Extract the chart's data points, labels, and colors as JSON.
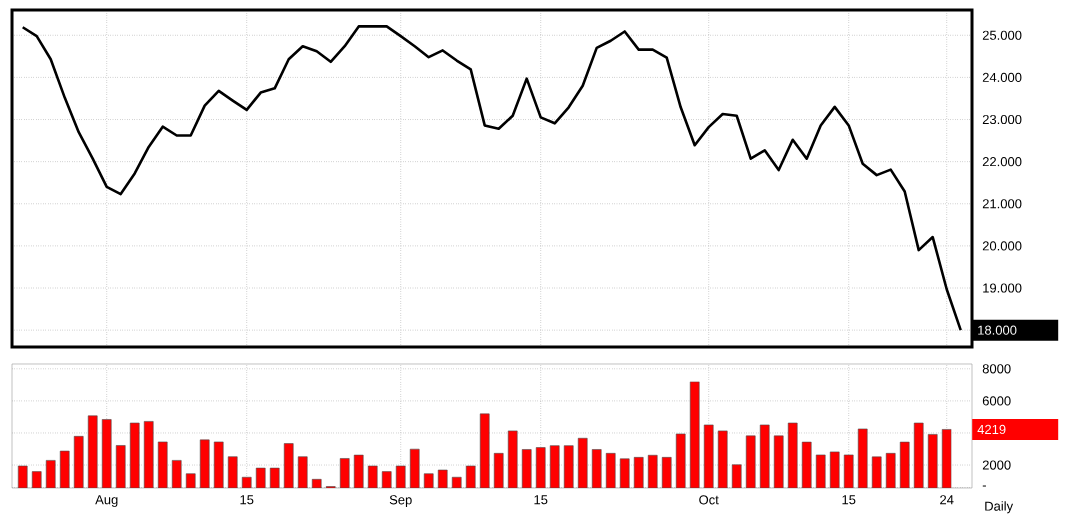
{
  "chart_data": [
    {
      "type": "line",
      "categories": [
        null,
        null,
        null,
        null,
        null,
        null,
        null,
        null,
        null,
        null,
        null,
        null,
        null,
        null,
        null,
        null,
        null,
        null,
        null,
        null,
        null,
        null,
        null,
        null,
        null,
        null,
        null,
        null,
        null,
        null,
        null,
        null,
        null,
        null,
        null,
        null,
        null,
        null,
        null,
        null,
        null,
        null,
        null,
        null,
        null,
        null,
        null,
        null,
        null,
        null,
        null,
        null,
        null,
        null,
        null,
        null,
        null,
        null,
        null,
        null,
        null,
        null,
        null,
        null,
        null,
        null,
        null,
        null
      ],
      "values": [
        25.19,
        24.98,
        24.43,
        23.52,
        22.7,
        22.07,
        21.4,
        21.23,
        21.72,
        22.35,
        22.83,
        22.62,
        22.62,
        23.33,
        23.68,
        23.45,
        23.23,
        23.64,
        23.74,
        24.43,
        24.74,
        24.62,
        24.37,
        24.74,
        25.21,
        25.21,
        25.21,
        24.98,
        24.74,
        24.48,
        24.64,
        24.4,
        24.19,
        22.86,
        22.78,
        23.09,
        23.97,
        23.05,
        22.91,
        23.29,
        23.8,
        24.7,
        24.87,
        25.09,
        24.66,
        24.66,
        24.47,
        23.29,
        22.39,
        22.82,
        23.13,
        23.09,
        22.07,
        22.27,
        21.8,
        22.52,
        22.07,
        22.86,
        23.3,
        22.86,
        21.95,
        21.68,
        21.81,
        21.29,
        19.9,
        20.21,
        18.97,
        18.0
      ],
      "color": "#000000",
      "ylim": [
        17.6,
        25.6
      ],
      "yticks": [
        {
          "value": 18,
          "label": null
        },
        {
          "value": 19,
          "label": "19.000"
        },
        {
          "value": 20,
          "label": "20.000"
        },
        {
          "value": 21,
          "label": "21.000"
        },
        {
          "value": 22,
          "label": "22.000"
        },
        {
          "value": 23,
          "label": "23.000"
        },
        {
          "value": 24,
          "label": "24.000"
        },
        {
          "value": 25,
          "label": "25.000"
        }
      ],
      "grid": true,
      "tick_labels": "y",
      "annotations": [
        "18.000"
      ]
    },
    {
      "type": "bar",
      "categories": [
        null,
        null,
        null,
        null,
        null,
        null,
        "Aug",
        null,
        null,
        null,
        null,
        null,
        null,
        null,
        null,
        null,
        "15",
        null,
        null,
        null,
        null,
        null,
        null,
        null,
        null,
        null,
        null,
        "Sep",
        null,
        null,
        null,
        null,
        null,
        null,
        null,
        null,
        null,
        "15",
        null,
        null,
        null,
        null,
        null,
        null,
        null,
        null,
        null,
        null,
        null,
        "Oct",
        null,
        null,
        null,
        null,
        null,
        null,
        null,
        null,
        null,
        "15",
        null,
        null,
        null,
        null,
        null,
        null,
        "24",
        null
      ],
      "values": [
        1940,
        1590,
        2290,
        2870,
        3790,
        5070,
        4840,
        3220,
        4620,
        4720,
        3440,
        2290,
        1460,
        3570,
        3440,
        2520,
        1240,
        1810,
        1810,
        3340,
        2520,
        1110,
        660,
        2410,
        2620,
        1940,
        1590,
        1940,
        2990,
        1460,
        1690,
        1240,
        1940,
        5190,
        2730,
        4130,
        2970,
        3090,
        3210,
        3210,
        3670,
        2970,
        2730,
        2390,
        2480,
        2610,
        2480,
        3940,
        7190,
        4500,
        4130,
        2020,
        3820,
        4500,
        3820,
        4620,
        3430,
        2630,
        2820,
        2630,
        4250,
        2510,
        2730,
        3430,
        4620,
        3910,
        4219,
        null
      ],
      "color": "#ff0000",
      "ylim": [
        570,
        8300
      ],
      "yticks": [
        {
          "value": 600,
          "label": "-"
        },
        2000,
        {
          "value": 4000,
          "label": null
        },
        6000,
        8000
      ],
      "grid": true,
      "annotations": [
        "4219",
        "Daily"
      ]
    }
  ]
}
